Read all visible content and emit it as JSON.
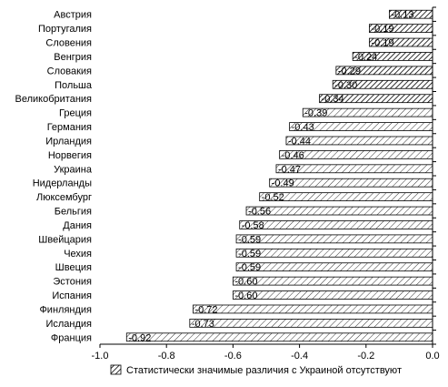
{
  "chart_data": {
    "type": "bar",
    "orientation": "horizontal",
    "title": "",
    "xlabel": "",
    "ylabel": "",
    "xlim": [
      -1.0,
      0.0
    ],
    "x_ticks": [
      -1.0,
      -0.8,
      -0.6,
      -0.4,
      -0.2,
      0.0
    ],
    "x_tick_labels": [
      "-1.0",
      "-0.8",
      "-0.6",
      "-0.4",
      "-0.2",
      "0.0"
    ],
    "grid": false,
    "legend_position": "bottom",
    "bar_color": "#ffffff",
    "edge_color": "#000000",
    "categories": [
      "Австрия",
      "Португалия",
      "Словения",
      "Венгрия",
      "Словакия",
      "Польша",
      "Великобритания",
      "Греция",
      "Германия",
      "Ирландия",
      "Норвегия",
      "Украина",
      "Нидерланды",
      "Люксембург",
      "Бельгия",
      "Дания",
      "Швейцария",
      "Чехия",
      "Швеция",
      "Эстония",
      "Испания",
      "Финляндия",
      "Исландия",
      "Франция"
    ],
    "values": [
      -0.13,
      -0.19,
      -0.19,
      -0.24,
      -0.29,
      -0.3,
      -0.34,
      -0.39,
      -0.43,
      -0.44,
      -0.46,
      -0.47,
      -0.49,
      -0.52,
      -0.56,
      -0.58,
      -0.59,
      -0.59,
      -0.59,
      -0.6,
      -0.6,
      -0.72,
      -0.73,
      -0.92
    ],
    "value_labels": [
      "-0.13",
      "-0.19",
      "-0.19",
      "-0.24",
      "-0.29",
      "-0.30",
      "-0.34",
      "-0.39",
      "-0.43",
      "-0.44",
      "-0.46",
      "-0.47",
      "-0.49",
      "-0.52",
      "-0.56",
      "-0.58",
      "-0.59",
      "-0.59",
      "-0.59",
      "-0.60",
      "-0.60",
      "-0.72",
      "-0.73",
      "-0.92"
    ],
    "hatched": [
      true,
      true,
      true,
      true,
      true,
      true,
      true,
      false,
      false,
      false,
      false,
      false,
      false,
      false,
      false,
      false,
      false,
      false,
      false,
      false,
      false,
      false,
      false,
      false
    ],
    "legend": [
      {
        "label": "Статистически значимые различия с Украиной отсутствуют",
        "pattern": "hatch-dense"
      }
    ]
  }
}
